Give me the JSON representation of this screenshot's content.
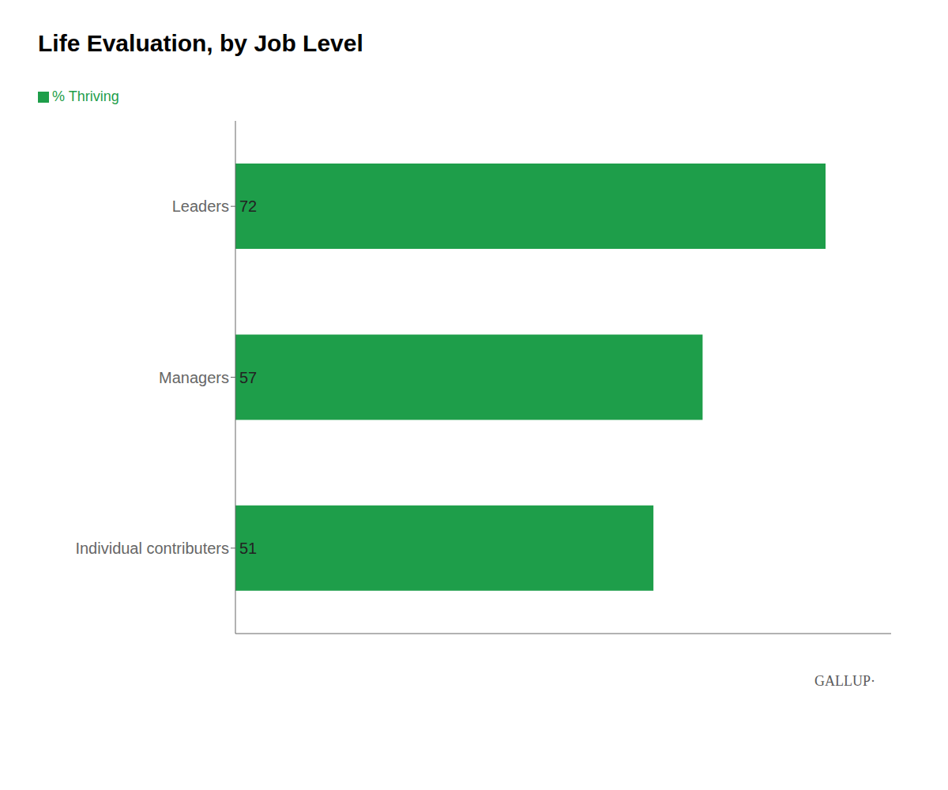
{
  "chart_data": {
    "type": "bar",
    "orientation": "horizontal",
    "title": "Life Evaluation, by Job Level",
    "categories": [
      "Leaders",
      "Managers",
      "Individual contributers"
    ],
    "series": [
      {
        "name": "% Thriving",
        "color": "#1e9e4a",
        "values": [
          72,
          57,
          51
        ]
      }
    ],
    "xlim": [
      0,
      80
    ],
    "data_labels": true,
    "tick_labels": "y",
    "grid": false,
    "legend": "upper left",
    "annotations": [
      "GALLUP·"
    ]
  }
}
